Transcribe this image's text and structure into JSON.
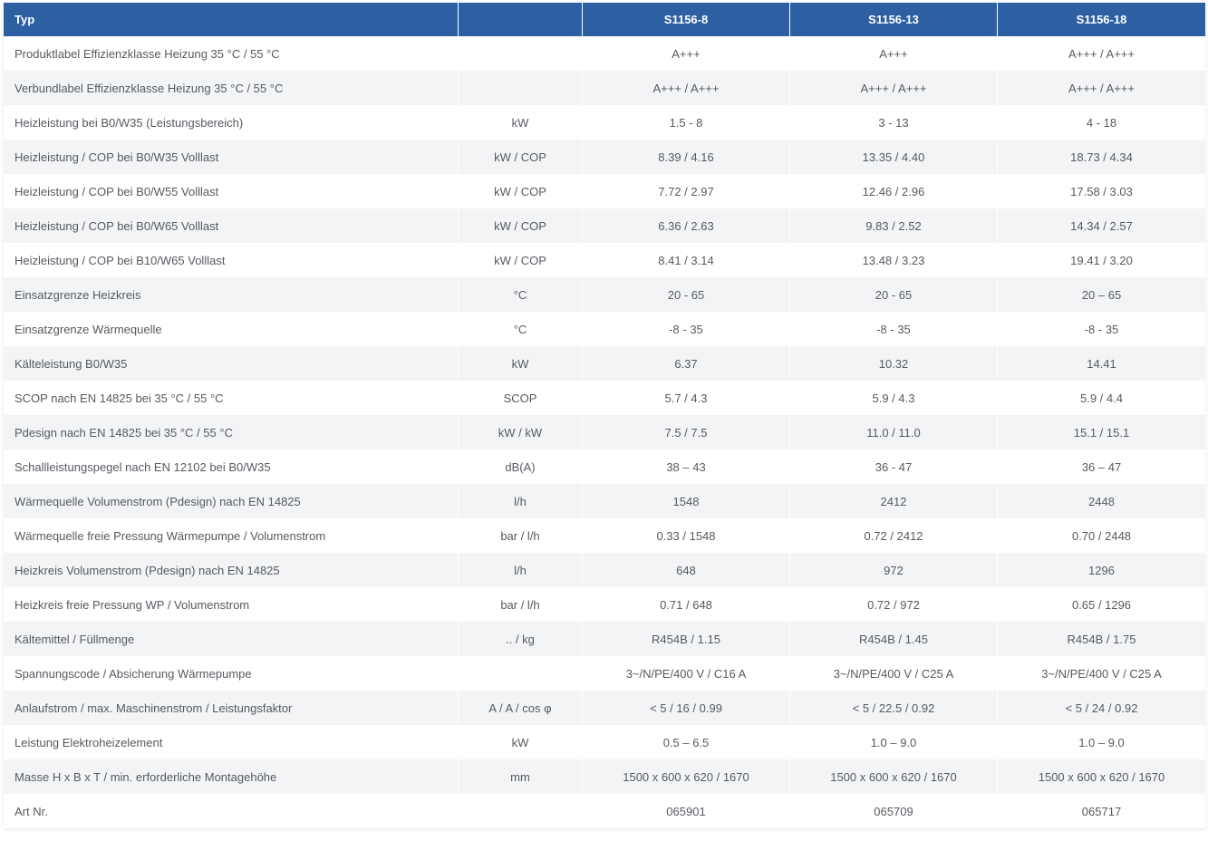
{
  "table": {
    "headers": [
      "Typ",
      "",
      "S1156-8",
      "S1156-13",
      "S1156-18"
    ],
    "rows": [
      [
        "Produktlabel Effizienzklasse Heizung 35 °C / 55 °C",
        "",
        "A+++",
        "A+++",
        "A+++ / A+++"
      ],
      [
        "Verbundlabel Effizienzklasse Heizung 35 °C / 55 °C",
        "",
        "A+++ / A+++",
        "A+++ / A+++",
        "A+++ / A+++"
      ],
      [
        "Heizleistung bei B0/W35 (Leistungsbereich)",
        "kW",
        "1.5 - 8",
        "3 - 13",
        "4 - 18"
      ],
      [
        "Heizleistung / COP bei B0/W35 Volllast",
        "kW / COP",
        "8.39 / 4.16",
        "13.35 / 4.40",
        "18.73 / 4.34"
      ],
      [
        "Heizleistung / COP bei B0/W55 Volllast",
        "kW / COP",
        "7.72 / 2.97",
        "12.46 / 2.96",
        "17.58 / 3.03"
      ],
      [
        "Heizleistung / COP bei B0/W65 Volllast",
        "kW / COP",
        "6.36 / 2.63",
        "9.83 / 2.52",
        "14.34 / 2.57"
      ],
      [
        "Heizleistung / COP bei B10/W65 Volllast",
        "kW / COP",
        "8.41 / 3.14",
        "13.48 / 3.23",
        "19.41 / 3.20"
      ],
      [
        "Einsatzgrenze Heizkreis",
        "°C",
        "20 - 65",
        "20 - 65",
        "20 – 65"
      ],
      [
        "Einsatzgrenze Wärmequelle",
        "°C",
        "-8 - 35",
        "-8 - 35",
        "-8 - 35"
      ],
      [
        "Kälteleistung B0/W35",
        "kW",
        "6.37",
        "10.32",
        "14.41"
      ],
      [
        "SCOP nach EN 14825 bei 35 °C / 55 °C",
        "SCOP",
        "5.7 / 4.3",
        "5.9 / 4.3",
        "5.9 / 4.4"
      ],
      [
        "Pdesign nach EN 14825 bei 35 °C / 55 °C",
        "kW / kW",
        "7.5 / 7.5",
        "11.0 / 11.0",
        "15.1 / 15.1"
      ],
      [
        "Schallleistungspegel nach EN 12102 bei B0/W35",
        "dB(A)",
        "38 – 43",
        "36 - 47",
        "36 – 47"
      ],
      [
        "Wärmequelle Volumenstrom (Pdesign) nach EN 14825",
        "l/h",
        "1548",
        "2412",
        "2448"
      ],
      [
        "Wärmequelle freie Pressung Wärmepumpe / Volumenstrom",
        "bar / l/h",
        "0.33 / 1548",
        "0.72 / 2412",
        "0.70 / 2448"
      ],
      [
        "Heizkreis Volumenstrom (Pdesign) nach EN 14825",
        "l/h",
        "648",
        "972",
        "1296"
      ],
      [
        "Heizkreis freie Pressung WP / Volumenstrom",
        "bar / l/h",
        "0.71 / 648",
        "0.72 / 972",
        "0.65 / 1296"
      ],
      [
        "Kältemittel / Füllmenge",
        ".. / kg",
        "R454B / 1.15",
        "R454B / 1.45",
        "R454B / 1.75"
      ],
      [
        "Spannungscode / Absicherung Wärmepumpe",
        "",
        "3~/N/PE/400 V / C16 A",
        "3~/N/PE/400 V / C25 A",
        "3~/N/PE/400 V / C25 A"
      ],
      [
        "Anlaufstrom / max. Maschinenstrom / Leistungsfaktor",
        "A / A / cos φ",
        "< 5 / 16 / 0.99",
        "< 5 / 22.5 / 0.92",
        "< 5 / 24 / 0.92"
      ],
      [
        "Leistung Elektroheizelement",
        "kW",
        "0.5 – 6.5",
        "1.0 – 9.0",
        "1.0 – 9.0"
      ],
      [
        "Masse H x B x T / min. erforderliche Montagehöhe",
        "mm",
        "1500 x 600 x 620 / 1670",
        "1500 x 600 x 620 / 1670",
        "1500 x 600 x 620 / 1670"
      ],
      [
        "Art Nr.",
        "",
        "065901",
        "065709",
        "065717"
      ]
    ]
  },
  "colors": {
    "header_bg": "#2d5fa3",
    "header_text": "#ffffff",
    "row_alt_bg": "#f3f4f5",
    "text": "#555a60"
  }
}
